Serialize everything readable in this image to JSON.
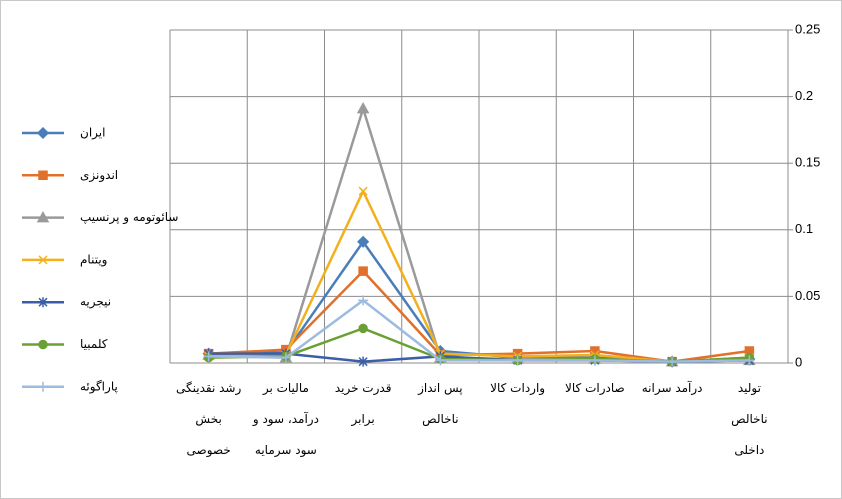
{
  "chart_data": {
    "type": "line",
    "categories": [
      "تولید\nناخالص\nداخلی",
      "درآمد سرانه",
      "صادرات کالا",
      "واردات کالا",
      "پس انداز\nناخالص",
      "قدرت خرید\nبرابر",
      "مالیات بر\nدرآمد، سود و\nسود سرمایه",
      "رشد نقدینگی\nبخش\nخصوصی"
    ],
    "x_reversed": true,
    "series": [
      {
        "name": "ایران",
        "color": "#4a7ebb",
        "marker": "diamond",
        "values": [
          0.003,
          0.001,
          0.004,
          0.004,
          0.009,
          0.091,
          0.008,
          0.007
        ]
      },
      {
        "name": "اندونزی",
        "color": "#e0702a",
        "marker": "square",
        "values": [
          0.009,
          0.001,
          0.009,
          0.007,
          0.006,
          0.069,
          0.01,
          0.007
        ]
      },
      {
        "name": "سائوتومه و پرنسیپ",
        "color": "#9a9a9a",
        "marker": "triangle",
        "values": [
          0.002,
          0.001,
          0.003,
          0.003,
          0.004,
          0.191,
          0.004,
          0.006
        ]
      },
      {
        "name": "ویتنام",
        "color": "#f2b01e",
        "marker": "x",
        "values": [
          0.004,
          0.001,
          0.006,
          0.005,
          0.007,
          0.129,
          0.006,
          0.005
        ]
      },
      {
        "name": "نیجریه",
        "color": "#3b5ea8",
        "marker": "asterisk",
        "values": [
          0.002,
          0.001,
          0.002,
          0.002,
          0.005,
          0.001,
          0.007,
          0.007
        ]
      },
      {
        "name": "کلمبیا",
        "color": "#6aa033",
        "marker": "circle",
        "values": [
          0.004,
          0.001,
          0.003,
          0.002,
          0.003,
          0.026,
          0.005,
          0.004
        ]
      },
      {
        "name": "پاراگوئه",
        "color": "#9dbbe0",
        "marker": "plus",
        "values": [
          0.002,
          0.001,
          0.002,
          0.002,
          0.002,
          0.047,
          0.004,
          0.005
        ]
      }
    ],
    "ylim": [
      0,
      0.25
    ],
    "yticks": [
      0,
      0.05,
      0.1,
      0.15,
      0.2,
      0.25
    ],
    "y_axis_side": "right",
    "grid": true,
    "legend": "left"
  }
}
